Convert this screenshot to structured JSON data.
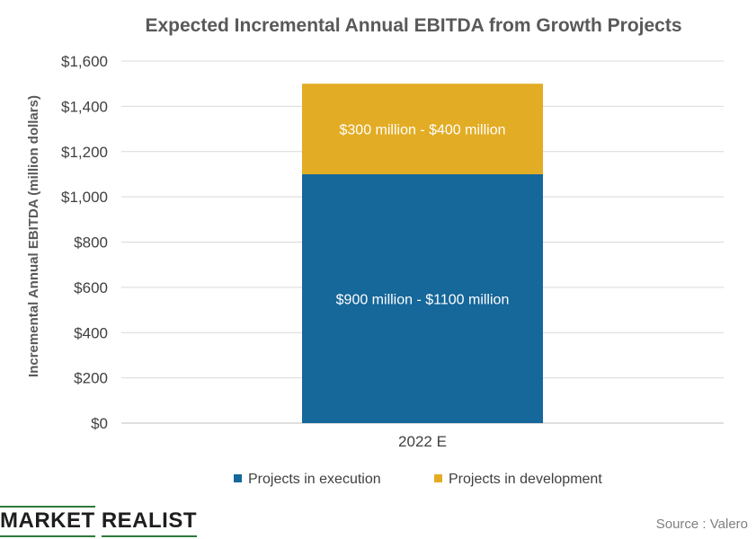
{
  "chart_data": {
    "type": "bar",
    "stacked": true,
    "title": "Expected Incremental Annual EBITDA from Growth Projects",
    "xlabel": "",
    "ylabel": "Incremental Annual EBITDA (million dollars)",
    "categories": [
      "2022 E"
    ],
    "ylim": [
      0,
      1600
    ],
    "yticks": [
      0,
      200,
      400,
      600,
      800,
      1000,
      1200,
      1400,
      1600
    ],
    "ytick_labels": [
      "$0",
      "$200",
      "$400",
      "$600",
      "$800",
      "$1,000",
      "$1,200",
      "$1,400",
      "$1,600"
    ],
    "grid": true,
    "legend_position": "bottom",
    "series": [
      {
        "name": "Projects in execution",
        "values": [
          1100
        ],
        "color": "#16679a",
        "label": "$900 million - $1100 million"
      },
      {
        "name": "Projects in development",
        "values": [
          400
        ],
        "color": "#e2ac24",
        "label": "$300 million - $400 million"
      }
    ]
  },
  "footer": {
    "logo_word1": "MARKET",
    "logo_word2": "REALIST",
    "source": "Source : Valero"
  }
}
